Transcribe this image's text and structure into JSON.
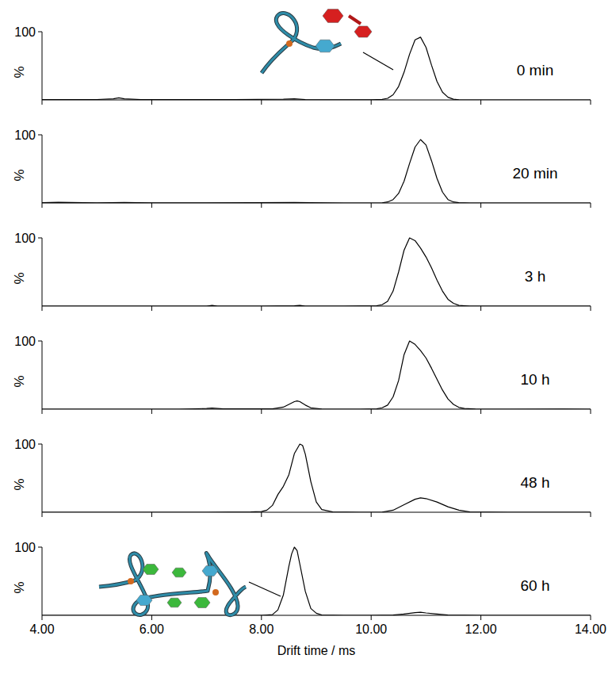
{
  "chart_data": [
    {
      "type": "line",
      "y_label": "%",
      "annotation": "0 min",
      "color": "#000000",
      "tick_labels": "y",
      "xlim": [
        4,
        14
      ],
      "ylim": [
        0,
        100
      ],
      "xticks": [
        {
          "value": 4,
          "label": "4.00"
        },
        {
          "value": 6,
          "label": "6.00"
        },
        {
          "value": 8,
          "label": "8.00"
        },
        {
          "value": 10,
          "label": "10.00"
        },
        {
          "value": 12,
          "label": "12.00"
        },
        {
          "value": 14,
          "label": "14.00"
        }
      ],
      "yticks": [
        100
      ],
      "x": [
        4.0,
        4.5,
        5.0,
        5.3,
        5.4,
        5.5,
        5.8,
        6.5,
        7.5,
        8.4,
        8.6,
        8.8,
        9.5,
        10.0,
        10.2,
        10.3,
        10.4,
        10.5,
        10.6,
        10.7,
        10.8,
        10.9,
        11.0,
        11.1,
        11.2,
        11.3,
        11.4,
        11.5,
        11.6,
        11.8,
        12.5,
        13.5,
        14.0
      ],
      "values": [
        0.5,
        0.5,
        0.6,
        1.5,
        3,
        1.5,
        0.5,
        0.5,
        0.5,
        1,
        1.5,
        0.5,
        0.3,
        0.3,
        0.8,
        2.3,
        7.6,
        19.7,
        40.6,
        67,
        88,
        92,
        77,
        51,
        27,
        11.4,
        3.9,
        1,
        0.2,
        0,
        0,
        0,
        0
      ]
    },
    {
      "type": "line",
      "y_label": "%",
      "annotation": "20 min",
      "color": "#000000",
      "tick_labels": "y",
      "xlim": [
        4,
        14
      ],
      "ylim": [
        0,
        100
      ],
      "xticks": [
        {
          "value": 4,
          "label": "4.00"
        },
        {
          "value": 6,
          "label": "6.00"
        },
        {
          "value": 8,
          "label": "8.00"
        },
        {
          "value": 10,
          "label": "10.00"
        },
        {
          "value": 12,
          "label": "12.00"
        },
        {
          "value": 14,
          "label": "14.00"
        }
      ],
      "yticks": [
        100
      ],
      "x": [
        4.0,
        4.3,
        5.0,
        5.5,
        6.0,
        7.0,
        8.6,
        9.5,
        10.2,
        10.3,
        10.4,
        10.5,
        10.6,
        10.7,
        10.8,
        10.9,
        11.0,
        11.1,
        11.2,
        11.3,
        11.4,
        11.5,
        11.6,
        11.8,
        12.5,
        13.5,
        14.0
      ],
      "values": [
        0.5,
        1,
        0.3,
        0.8,
        0.3,
        0.3,
        0.8,
        0,
        0.3,
        1.5,
        5,
        14,
        32,
        58,
        82,
        93,
        85,
        62,
        36,
        16,
        5,
        1.5,
        0.4,
        0,
        0,
        0,
        0
      ]
    },
    {
      "type": "line",
      "y_label": "%",
      "annotation": "3 h",
      "color": "#000000",
      "tick_labels": "y",
      "xlim": [
        4,
        14
      ],
      "ylim": [
        0,
        100
      ],
      "xticks": [
        {
          "value": 4,
          "label": "4.00"
        },
        {
          "value": 6,
          "label": "6.00"
        },
        {
          "value": 8,
          "label": "8.00"
        },
        {
          "value": 10,
          "label": "10.00"
        },
        {
          "value": 12,
          "label": "12.00"
        },
        {
          "value": 14,
          "label": "14.00"
        }
      ],
      "yticks": [
        100
      ],
      "x": [
        4.0,
        6.0,
        7.0,
        7.1,
        7.2,
        8.0,
        8.6,
        8.7,
        8.8,
        9.5,
        10.1,
        10.2,
        10.3,
        10.4,
        10.5,
        10.6,
        10.7,
        10.8,
        10.9,
        11.0,
        11.1,
        11.2,
        11.3,
        11.4,
        11.5,
        11.6,
        11.8,
        12.5,
        14.0
      ],
      "values": [
        0,
        0,
        0,
        1,
        0,
        0,
        0.5,
        1,
        0,
        0,
        0.5,
        2,
        7,
        22,
        50,
        82,
        100,
        96,
        85,
        72,
        56,
        38,
        22,
        10,
        4,
        1,
        0,
        0,
        0
      ]
    },
    {
      "type": "line",
      "y_label": "%",
      "annotation": "10 h",
      "color": "#000000",
      "tick_labels": "y",
      "xlim": [
        4,
        14
      ],
      "ylim": [
        0,
        100
      ],
      "xticks": [
        {
          "value": 4,
          "label": "4.00"
        },
        {
          "value": 6,
          "label": "6.00"
        },
        {
          "value": 8,
          "label": "8.00"
        },
        {
          "value": 10,
          "label": "10.00"
        },
        {
          "value": 12,
          "label": "12.00"
        },
        {
          "value": 14,
          "label": "14.00"
        }
      ],
      "yticks": [
        100
      ],
      "x": [
        4.0,
        6.5,
        7.0,
        7.1,
        7.3,
        8.2,
        8.4,
        8.5,
        8.6,
        8.65,
        8.7,
        8.8,
        8.9,
        9.1,
        9.8,
        10.1,
        10.2,
        10.3,
        10.4,
        10.5,
        10.6,
        10.7,
        10.8,
        10.9,
        11.0,
        11.1,
        11.2,
        11.3,
        11.4,
        11.5,
        11.6,
        11.7,
        11.9,
        12.5,
        13.5,
        14.0
      ],
      "values": [
        0,
        0,
        1,
        1.5,
        0.5,
        0.5,
        3,
        7,
        11,
        12,
        11,
        6,
        2,
        0.3,
        0,
        0.5,
        2,
        6,
        18,
        42,
        80,
        100,
        95,
        86,
        75,
        60,
        44,
        28,
        15,
        7,
        2.5,
        1,
        0.3,
        0,
        0.3,
        0
      ]
    },
    {
      "type": "line",
      "y_label": "%",
      "annotation": "48 h",
      "color": "#000000",
      "tick_labels": "y",
      "xlim": [
        4,
        14
      ],
      "ylim": [
        0,
        100
      ],
      "xticks": [
        {
          "value": 4,
          "label": "4.00"
        },
        {
          "value": 6,
          "label": "6.00"
        },
        {
          "value": 8,
          "label": "8.00"
        },
        {
          "value": 10,
          "label": "10.00"
        },
        {
          "value": 12,
          "label": "12.00"
        },
        {
          "value": 14,
          "label": "14.00"
        }
      ],
      "yticks": [
        100
      ],
      "x": [
        4.0,
        7.0,
        7.8,
        8.0,
        8.1,
        8.2,
        8.3,
        8.4,
        8.5,
        8.6,
        8.7,
        8.75,
        8.8,
        8.9,
        9.0,
        9.1,
        9.3,
        9.8,
        10.2,
        10.4,
        10.6,
        10.8,
        10.9,
        11.0,
        11.2,
        11.4,
        11.6,
        11.8,
        12.5,
        14.0
      ],
      "values": [
        0,
        0,
        0.5,
        1,
        3,
        10,
        26,
        38,
        55,
        86,
        100,
        98,
        85,
        45,
        15,
        4,
        0.5,
        0,
        0.3,
        3,
        11,
        19,
        21,
        20,
        15,
        8,
        3,
        0.5,
        0,
        0
      ]
    },
    {
      "type": "line",
      "y_label": "%",
      "annotation": "60 h",
      "x_label": "Drift time / ms",
      "color": "#000000",
      "xlim": [
        4,
        14
      ],
      "ylim": [
        0,
        100
      ],
      "xticks": [
        {
          "value": 4,
          "label": "4.00"
        },
        {
          "value": 6,
          "label": "6.00"
        },
        {
          "value": 8,
          "label": "8.00"
        },
        {
          "value": 10,
          "label": "10.00"
        },
        {
          "value": 12,
          "label": "12.00"
        },
        {
          "value": 14,
          "label": "14.00"
        }
      ],
      "yticks": [
        100
      ],
      "x": [
        4.0,
        7.5,
        8.0,
        8.2,
        8.3,
        8.4,
        8.5,
        8.55,
        8.6,
        8.65,
        8.7,
        8.8,
        8.9,
        9.0,
        9.1,
        9.5,
        10.0,
        10.4,
        10.6,
        10.8,
        10.9,
        11.0,
        11.2,
        11.4,
        12.0,
        14.0
      ],
      "values": [
        0,
        0,
        0,
        1,
        8,
        30,
        72,
        90,
        100,
        95,
        75,
        35,
        10,
        3,
        0.5,
        0,
        0,
        0.5,
        2,
        4,
        4.5,
        3.5,
        2,
        0.5,
        0,
        0
      ]
    }
  ]
}
